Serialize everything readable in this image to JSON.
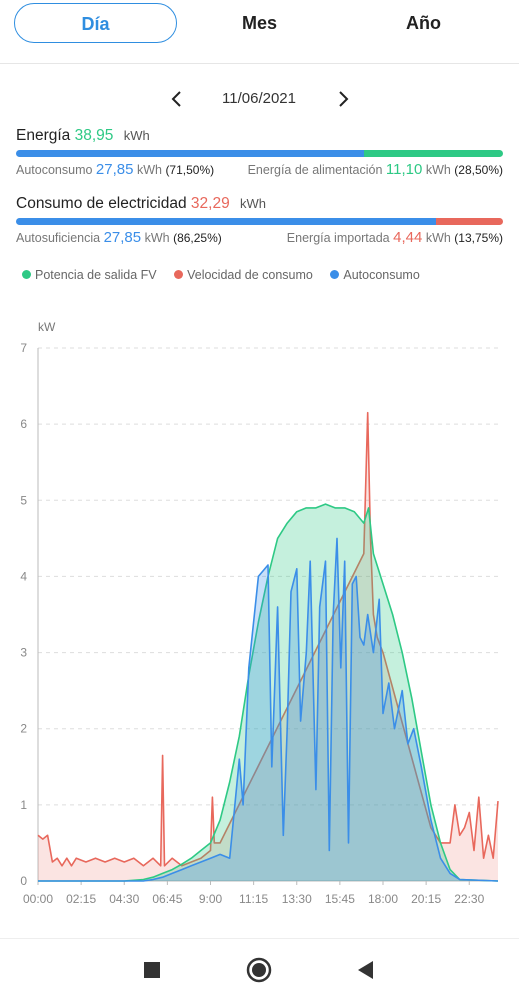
{
  "tabs": {
    "day": "Día",
    "month": "Mes",
    "year": "Año",
    "active": "day"
  },
  "date_nav": {
    "date": "11/06/2021",
    "prev_icon": "chevron-left-icon",
    "next_icon": "chevron-right-icon"
  },
  "energy": {
    "label": "Energía",
    "value": "38,95",
    "unit": "kWh",
    "self_label": "Autoconsumo",
    "self_value": "27,85",
    "self_unit": "kWh",
    "self_pct": "(71,50%)",
    "feed_label": "Energía de alimentación",
    "feed_value": "11,10",
    "feed_unit": "kWh",
    "feed_pct": "(28,50%)",
    "self_fraction": 0.715
  },
  "consumption": {
    "label": "Consumo de electricidad",
    "value": "32,29",
    "unit": "kWh",
    "suff_label": "Autosuficiencia",
    "suff_value": "27,85",
    "suff_unit": "kWh",
    "suff_pct": "(86,25%)",
    "imp_label": "Energía importada",
    "imp_value": "4,44",
    "imp_unit": "kWh",
    "imp_pct": "(13,75%)",
    "suff_fraction": 0.8625
  },
  "colors": {
    "green": "#2ec985",
    "red": "#e8685c",
    "blue": "#3b8ee8",
    "active_tab": "#2f8ee0"
  },
  "chart_data": {
    "type": "area",
    "ylabel": "kW",
    "ylim": [
      0,
      7
    ],
    "yticks": [
      "0",
      "1",
      "2",
      "3",
      "4",
      "5",
      "6",
      "7"
    ],
    "xticks": [
      "00:00",
      "02:15",
      "04:30",
      "06:45",
      "9:00",
      "11:15",
      "13:30",
      "15:45",
      "18:00",
      "20:15",
      "22:30"
    ],
    "x_unit": "hours",
    "grid": true,
    "legend_position": "top",
    "series": [
      {
        "name": "Potencia de salida FV",
        "color": "#2ec985",
        "x": [
          0,
          4.5,
          5.5,
          6.0,
          6.5,
          7.0,
          7.5,
          8.0,
          8.5,
          9.0,
          9.5,
          10.0,
          10.5,
          11.0,
          11.5,
          12.0,
          12.5,
          13.0,
          13.5,
          14.0,
          14.5,
          15.0,
          15.5,
          16.0,
          16.5,
          17.0,
          17.25,
          17.5,
          18.0,
          18.5,
          19.0,
          19.5,
          20.0,
          20.5,
          21.0,
          21.5,
          22.0,
          24
        ],
        "values": [
          0,
          0,
          0.02,
          0.05,
          0.1,
          0.15,
          0.22,
          0.3,
          0.4,
          0.5,
          0.8,
          1.3,
          1.9,
          2.7,
          3.4,
          4.0,
          4.5,
          4.7,
          4.85,
          4.9,
          4.9,
          4.95,
          4.9,
          4.9,
          4.85,
          4.7,
          4.9,
          4.3,
          3.9,
          3.5,
          3.0,
          2.4,
          1.7,
          1.0,
          0.5,
          0.15,
          0.02,
          0
        ]
      },
      {
        "name": "Velocidad de consumo",
        "color": "#e8685c",
        "x": [
          0,
          0.25,
          0.5,
          0.75,
          1.0,
          1.25,
          1.5,
          1.75,
          2.0,
          2.5,
          3.0,
          3.5,
          4.0,
          4.5,
          5.0,
          5.5,
          6.0,
          6.4,
          6.5,
          6.6,
          7.0,
          7.5,
          8.0,
          8.5,
          9.0,
          9.1,
          9.2,
          9.5,
          17.0,
          17.2,
          17.35,
          17.5,
          17.7,
          18.0,
          20.5,
          21.0,
          21.5,
          21.75,
          22.0,
          22.25,
          22.5,
          22.75,
          23.0,
          23.25,
          23.5,
          23.75,
          24
        ],
        "values": [
          0.6,
          0.55,
          0.6,
          0.25,
          0.3,
          0.2,
          0.3,
          0.2,
          0.3,
          0.25,
          0.3,
          0.25,
          0.3,
          0.25,
          0.3,
          0.2,
          0.3,
          0.2,
          1.65,
          0.2,
          0.3,
          0.2,
          0.25,
          0.3,
          0.4,
          1.1,
          0.5,
          0.5,
          4.3,
          6.15,
          4.5,
          3.5,
          3.2,
          3.0,
          0.7,
          0.5,
          0.5,
          1.0,
          0.6,
          0.7,
          0.9,
          0.4,
          1.1,
          0.3,
          0.6,
          0.3,
          1.05
        ]
      },
      {
        "name": "Autoconsumo",
        "color": "#3b8ee8",
        "x": [
          0,
          5.5,
          6.0,
          6.5,
          7.0,
          7.5,
          8.0,
          8.5,
          9.0,
          9.5,
          10.0,
          10.5,
          10.7,
          11.0,
          11.5,
          12.0,
          12.2,
          12.5,
          12.8,
          13.0,
          13.2,
          13.5,
          13.7,
          14.0,
          14.2,
          14.5,
          14.7,
          15.0,
          15.2,
          15.4,
          15.6,
          15.8,
          16.0,
          16.2,
          16.4,
          16.6,
          16.8,
          17.0,
          17.2,
          17.5,
          17.8,
          18.0,
          18.3,
          18.6,
          19.0,
          19.3,
          19.6,
          20.0,
          20.5,
          21.0,
          21.5,
          22.0,
          24
        ],
        "values": [
          0,
          0,
          0.02,
          0.05,
          0.1,
          0.15,
          0.2,
          0.25,
          0.3,
          0.35,
          0.3,
          1.6,
          1.0,
          2.8,
          4.0,
          4.15,
          1.5,
          3.6,
          0.6,
          2.0,
          3.8,
          4.1,
          2.1,
          3.0,
          4.2,
          1.2,
          3.6,
          4.2,
          0.4,
          3.5,
          4.5,
          2.8,
          4.2,
          0.5,
          3.9,
          4.0,
          3.2,
          3.1,
          3.5,
          3.0,
          3.7,
          2.2,
          2.6,
          2.0,
          2.5,
          1.8,
          2.0,
          1.5,
          0.8,
          0.3,
          0.1,
          0.02,
          0
        ]
      }
    ]
  },
  "navbar": {
    "stop_icon": "stop-square-icon",
    "home_icon": "home-circle-icon",
    "back_icon": "back-triangle-icon"
  }
}
